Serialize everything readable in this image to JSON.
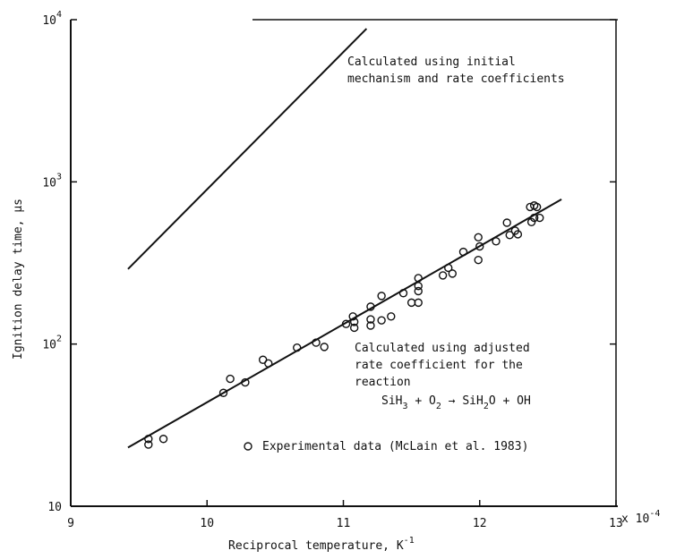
{
  "chart_data": {
    "type": "scatter",
    "title": "",
    "xlabel": "Reciprocal temperature, K",
    "xlabel_sup": "-1",
    "ylabel": "Ignition delay time, μs",
    "x_multiplier_label": "x 10",
    "x_multiplier_exp": "-4",
    "xlim": [
      9,
      13
    ],
    "ylim": [
      10,
      10000
    ],
    "yscale": "log",
    "grid": false,
    "x_ticks": [
      9,
      10,
      11,
      12,
      13
    ],
    "x_tick_labels": [
      "9",
      "10",
      "11",
      "12",
      "13"
    ],
    "y_ticks": [
      {
        "value": 10,
        "base": "10",
        "exp": ""
      },
      {
        "value": 100,
        "base": "10",
        "exp": "2"
      },
      {
        "value": 1000,
        "base": "10",
        "exp": "3"
      },
      {
        "value": 10000,
        "base": "10",
        "exp": "4"
      }
    ],
    "series": [
      {
        "name": "Experimental data",
        "kind": "scatter",
        "marker": "open-circle",
        "points": [
          [
            9.57,
            26
          ],
          [
            9.57,
            24
          ],
          [
            9.68,
            26
          ],
          [
            10.12,
            50
          ],
          [
            10.17,
            61
          ],
          [
            10.28,
            58
          ],
          [
            10.41,
            80
          ],
          [
            10.45,
            76
          ],
          [
            10.66,
            95
          ],
          [
            10.8,
            102
          ],
          [
            10.86,
            96
          ],
          [
            11.02,
            133
          ],
          [
            11.07,
            148
          ],
          [
            11.08,
            137
          ],
          [
            11.08,
            126
          ],
          [
            11.2,
            170
          ],
          [
            11.2,
            142
          ],
          [
            11.2,
            130
          ],
          [
            11.28,
            198
          ],
          [
            11.28,
            140
          ],
          [
            11.35,
            148
          ],
          [
            11.44,
            206
          ],
          [
            11.5,
            180
          ],
          [
            11.55,
            255
          ],
          [
            11.55,
            228
          ],
          [
            11.55,
            212
          ],
          [
            11.55,
            180
          ],
          [
            11.73,
            265
          ],
          [
            11.77,
            295
          ],
          [
            11.8,
            272
          ],
          [
            11.88,
            370
          ],
          [
            11.99,
            455
          ],
          [
            12.0,
            400
          ],
          [
            11.99,
            330
          ],
          [
            12.12,
            430
          ],
          [
            12.2,
            560
          ],
          [
            12.22,
            470
          ],
          [
            12.26,
            500
          ],
          [
            12.28,
            475
          ],
          [
            12.37,
            700
          ],
          [
            12.38,
            565
          ],
          [
            12.4,
            715
          ],
          [
            12.4,
            600
          ],
          [
            12.42,
            700
          ],
          [
            12.44,
            600
          ]
        ]
      },
      {
        "name": "Calculated using initial mechanism and rate coefficients",
        "kind": "line",
        "points": [
          [
            9.42,
            290
          ],
          [
            11.17,
            8800
          ]
        ]
      },
      {
        "name": "Calculated using adjusted rate coefficient for the reaction",
        "kind": "line",
        "points": [
          [
            9.42,
            23
          ],
          [
            12.6,
            780
          ]
        ]
      }
    ],
    "annotations": {
      "initial_line1": "Calculated using initial",
      "initial_line2": "mechanism and rate coefficients",
      "adjusted_line1": "Calculated using adjusted",
      "adjusted_line2": "rate coefficient for the",
      "adjusted_line3": "reaction",
      "reaction": {
        "r1": "SiH",
        "r1_sub": "3",
        "plus1": " + O",
        "r2_sub": "2",
        "arrow": " → SiH",
        "p1_sub": "2",
        "p1_tail": "O + OH"
      },
      "legend_text": "Experimental data  (McLain et al. 1983)"
    }
  }
}
